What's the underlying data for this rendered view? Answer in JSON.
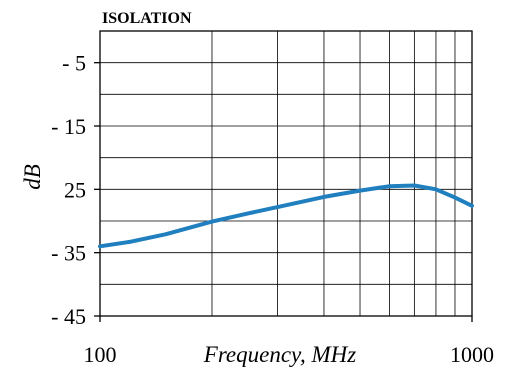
{
  "chart_data": {
    "type": "line",
    "title": "ISOLATION",
    "xlabel": "Frequency, MHz",
    "ylabel": "dB",
    "x_scale": "log",
    "xlim": [
      100,
      1000
    ],
    "ylim": [
      -45,
      0
    ],
    "grid": true,
    "x_tick_labels": [
      "100",
      "1000"
    ],
    "y_ticks": [
      {
        "value": -5,
        "label": "- 5"
      },
      {
        "value": -15,
        "label": "- 15"
      },
      {
        "value": -25,
        "label": "25"
      },
      {
        "value": -35,
        "label": "- 35"
      },
      {
        "value": -45,
        "label": "- 45"
      }
    ],
    "series": [
      {
        "color": "#1f7fbf",
        "x": [
          100,
          120,
          150,
          200,
          250,
          300,
          400,
          500,
          600,
          700,
          800,
          900,
          1000
        ],
        "y": [
          -34,
          -33.3,
          -32.1,
          -30.1,
          -28.8,
          -27.8,
          -26.2,
          -25.2,
          -24.5,
          -24.4,
          -25,
          -26.3,
          -27.6
        ]
      }
    ]
  }
}
